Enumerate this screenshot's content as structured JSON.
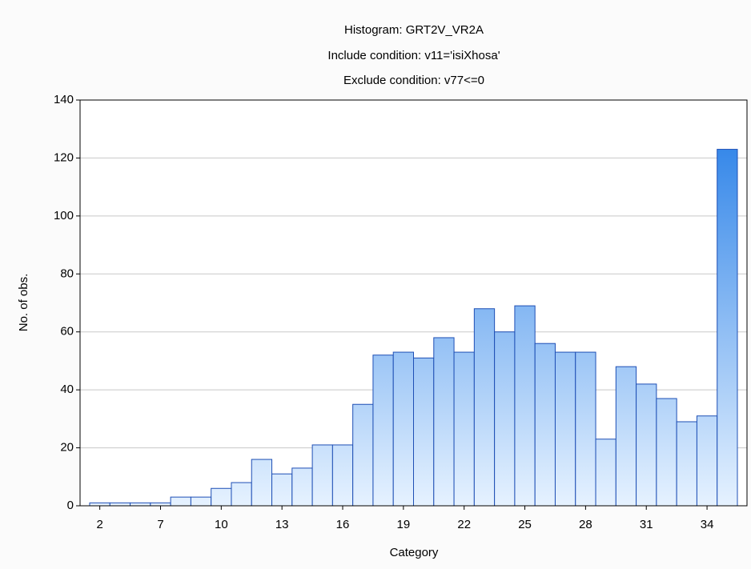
{
  "chart_data": {
    "type": "bar",
    "title": "Histogram: GRT2V_VR2A",
    "subtitle": [
      "Include condition: v11='isiXhosa'",
      "Exclude condition: v77<=0"
    ],
    "x_label": "Category",
    "y_label": "No. of obs.",
    "categories": [
      "2",
      null,
      null,
      "7",
      null,
      null,
      "10",
      null,
      null,
      "13",
      null,
      null,
      "16",
      null,
      null,
      "19",
      null,
      null,
      "22",
      null,
      null,
      "25",
      null,
      null,
      "28",
      null,
      null,
      "31",
      null,
      null,
      "34",
      null
    ],
    "values": [
      1,
      1,
      1,
      1,
      3,
      3,
      6,
      8,
      16,
      11,
      13,
      21,
      21,
      35,
      52,
      53,
      51,
      58,
      53,
      68,
      60,
      69,
      56,
      53,
      53,
      23,
      48,
      42,
      37,
      29,
      31,
      123
    ],
    "color": "#1f7ae6",
    "ylim": [
      0,
      140
    ],
    "yticks": [
      0,
      20,
      40,
      60,
      80,
      100,
      120,
      140
    ],
    "grid": true
  }
}
